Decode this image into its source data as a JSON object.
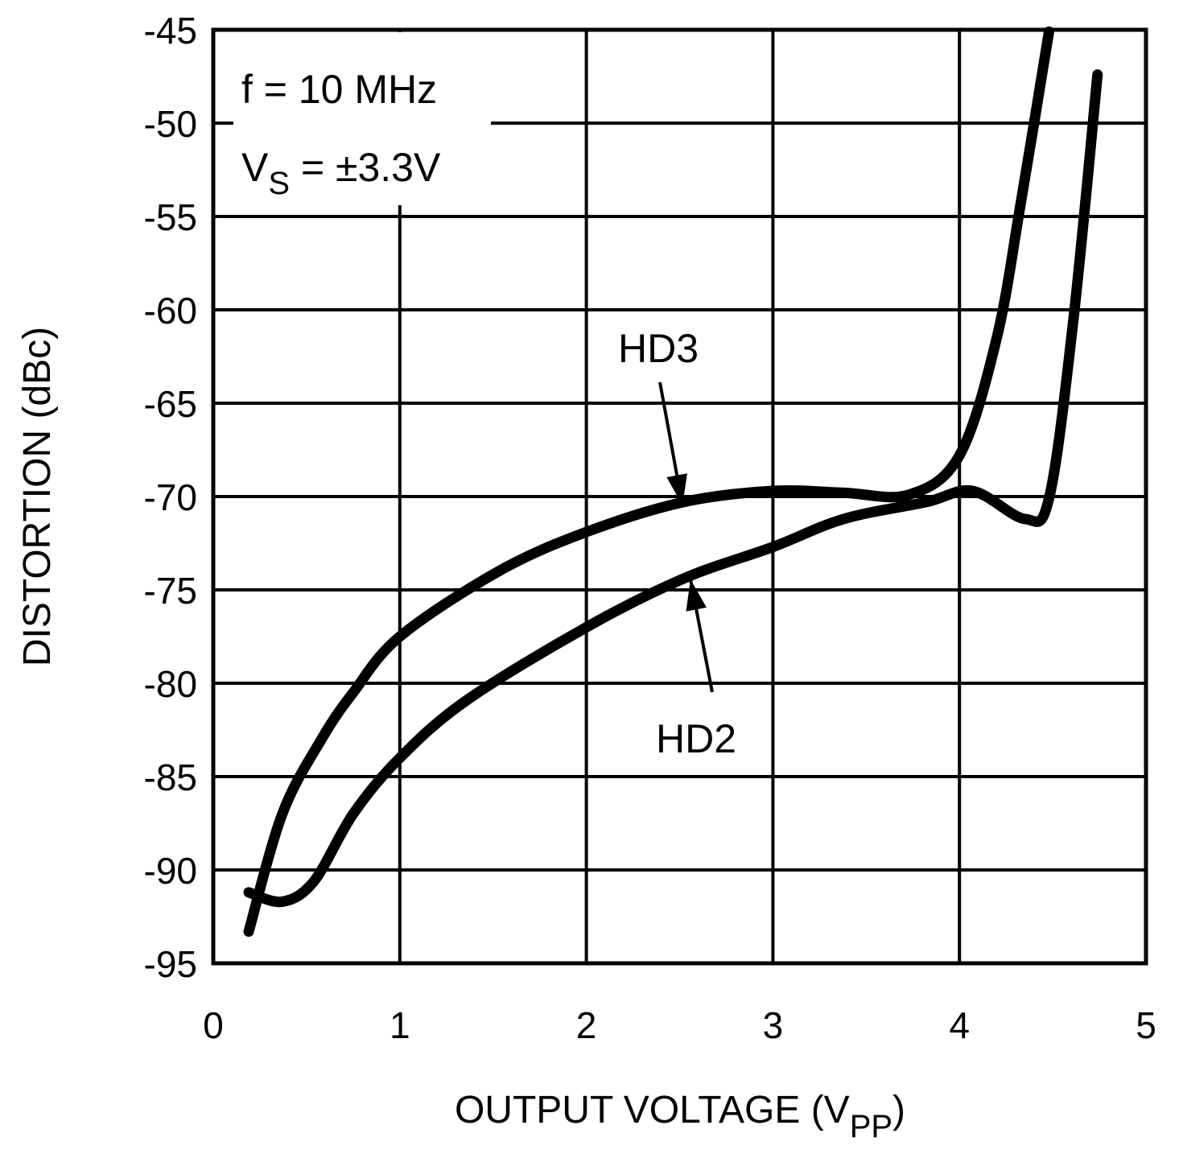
{
  "chart_data": {
    "type": "line",
    "title": "",
    "xlabel": "OUTPUT VOLTAGE (V",
    "xlabel_sub": "PP",
    "xlabel_end": ")",
    "ylabel": "DISTORTION (dBc)",
    "xlim": [
      0,
      5
    ],
    "ylim": [
      -95,
      -45
    ],
    "x_ticks": [
      "0",
      "1",
      "2",
      "3",
      "4",
      "5"
    ],
    "y_ticks": [
      "-45",
      "-50",
      "-55",
      "-60",
      "-65",
      "-70",
      "-75",
      "-80",
      "-85",
      "-90",
      "-95"
    ],
    "grid": true,
    "annotation": {
      "line1": "f = 10 MHz",
      "line2_prefix": "V",
      "line2_sub": "S",
      "line2_rest": " = ±3.3V"
    },
    "series": [
      {
        "name": "HD3",
        "label": "HD3",
        "x": [
          0.19,
          0.37,
          0.58,
          0.75,
          1.0,
          1.53,
          2.0,
          2.52,
          3.0,
          3.38,
          3.73,
          4.0,
          4.2,
          4.33,
          4.48
        ],
        "y": [
          -93.3,
          -87.0,
          -83.0,
          -80.5,
          -77.5,
          -74.0,
          -71.9,
          -70.3,
          -69.7,
          -69.8,
          -69.9,
          -67.8,
          -61.5,
          -54.2,
          -45.1
        ]
      },
      {
        "name": "HD2",
        "label": "HD2",
        "x": [
          0.19,
          0.37,
          0.54,
          0.75,
          1.0,
          1.36,
          2.0,
          2.52,
          3.0,
          3.38,
          3.82,
          4.07,
          4.35,
          4.48,
          4.61,
          4.74
        ],
        "y": [
          -91.2,
          -91.7,
          -90.6,
          -87.0,
          -84.0,
          -80.9,
          -77.0,
          -74.4,
          -72.7,
          -71.2,
          -70.3,
          -69.7,
          -71.2,
          -70.1,
          -60.6,
          -47.4
        ]
      }
    ],
    "line_color": "#000000"
  }
}
